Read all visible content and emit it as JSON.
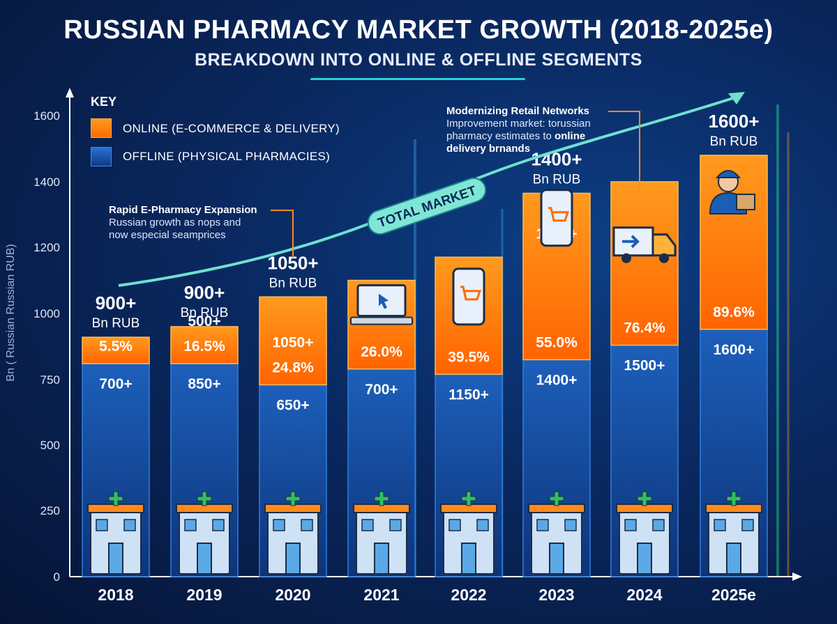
{
  "title": "RUSSIAN PHARMACY MARKET GROWTH (2018-2025e)",
  "subtitle": "BREAKDOWN INTO ONLINE & OFFLINE SEGMENTS",
  "legend": {
    "key": "KEY",
    "online": "ONLINE (E-COMMERCE & DELIVERY)",
    "offline": "OFFLINE (PHYSICAL PHARMACIES)"
  },
  "annotations": {
    "rapid_title": "Rapid E-Pharmacy Expansion",
    "rapid_line1": "Russian  growth as nops and",
    "rapid_line2": "now especial seamprices",
    "modern_title": "Modernizing Retail Networks",
    "modern_line1": "Improvement market: torussian",
    "modern_line2": "pharmacy estimates to ",
    "modern_line2_bold": "online",
    "modern_line3": "delivery brnands",
    "total_market": "TOTAL MARKET"
  },
  "colors": {
    "online": "#ff7a10",
    "offline": "#1753a8",
    "accent": "#27d1d8",
    "arrow": "#6fe0cf"
  },
  "chart_data": {
    "type": "bar",
    "stacked": true,
    "ylabel": "Bn ( Russian Russian RUB)",
    "y_ticks": [
      0,
      250,
      500,
      750,
      1000,
      1200,
      1400,
      1600
    ],
    "categories": [
      "2018",
      "2019",
      "2020",
      "2021",
      "2022",
      "2023",
      "2024",
      "2025e"
    ],
    "series": [
      {
        "name": "OFFLINE (PHYSICAL PHARMACIES)",
        "values": [
          810,
          810,
          730,
          790,
          770,
          825,
          880,
          940
        ]
      },
      {
        "name": "ONLINE (E-COMMERCE & DELIVERY)",
        "values": [
          100,
          140,
          320,
          310,
          400,
          540,
          520,
          540
        ]
      }
    ],
    "online_labels": [
      [
        "5.5%"
      ],
      [
        "500+",
        "16.5%"
      ],
      [
        "1050+",
        "24.8%"
      ],
      [
        "26.0%"
      ],
      [
        "39.5%"
      ],
      [
        "1400+",
        "55.0%"
      ],
      [
        "76.4%"
      ],
      [
        "1600+",
        "89.6%"
      ]
    ],
    "offline_labels": [
      "700+",
      "850+",
      "650+",
      "700+",
      "1150+",
      "1400+",
      "1500+",
      "1600+"
    ],
    "total_labels": [
      [
        "900+",
        "Bn RUB"
      ],
      [
        "900+",
        "Bn RUB"
      ],
      [
        "1050+",
        "Bn RUB"
      ],
      null,
      null,
      [
        "1400+",
        "Bn RUB"
      ],
      null,
      [
        "1600+",
        "Bn RUB"
      ]
    ],
    "icons": {
      "online": [
        null,
        null,
        null,
        "laptop-cart-icon",
        "phone-cart-icon",
        "phone-cart-icon",
        "delivery-truck-icon",
        "courier-icon"
      ],
      "offline": [
        "pharmacy-counter-icon",
        "pharmacy-kiosk-icon",
        "pharmacy-building-icon",
        "rx-store-icon",
        "pharmacist-icon",
        "pharmacy-tower-icon",
        "pharmacy-storefront-icon",
        "rx-tablet-icon"
      ]
    },
    "grid": false,
    "legend_position": "top-left"
  }
}
